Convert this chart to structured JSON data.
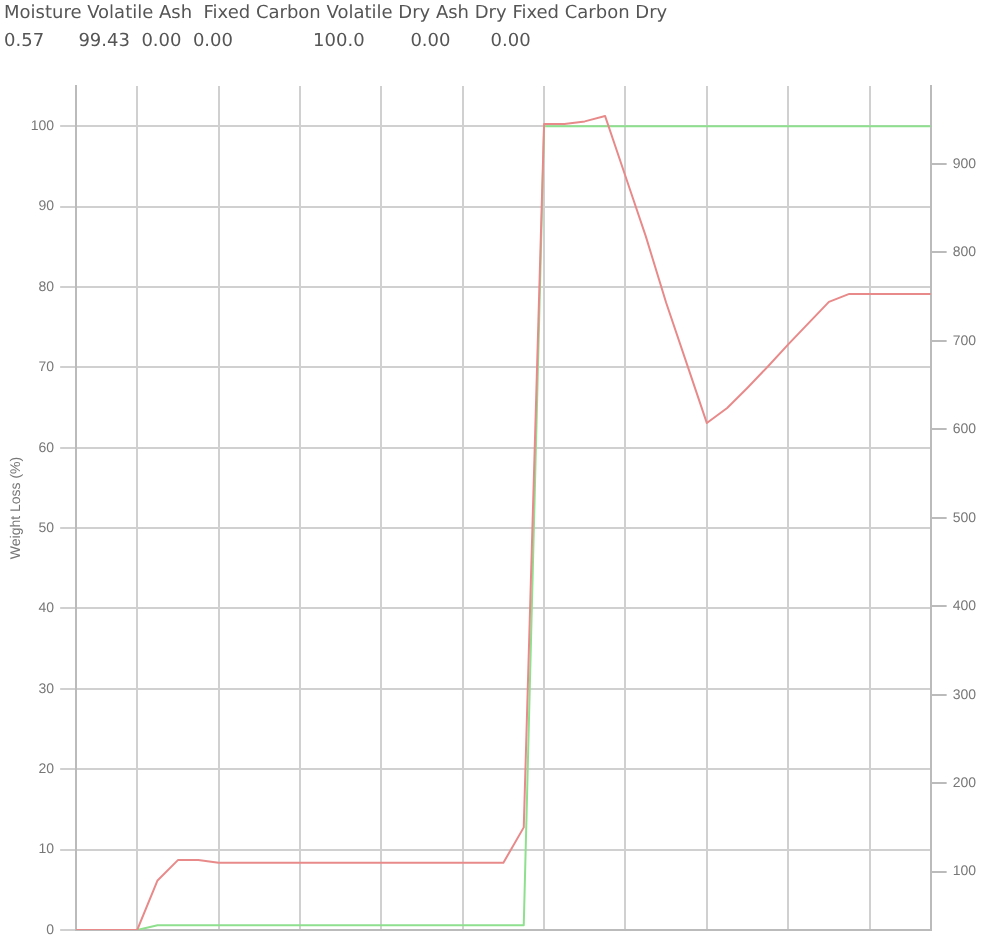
{
  "chart_data": {
    "type": "line",
    "ylabel": "Weight Loss (%)",
    "annotations": [
      "Moisture Volatile Ash  Fixed Carbon Volatile Dry Ash Dry Fixed Carbon Dry",
      "0.57      99.43  0.00  0.00              100.0        0.00       0.00"
    ],
    "categories": [
      null,
      null,
      null,
      null,
      null,
      null,
      null,
      null,
      null,
      null,
      null,
      null,
      null,
      null,
      null,
      null,
      null,
      null,
      null,
      null,
      null,
      null,
      null,
      null,
      null,
      null,
      null,
      null,
      null,
      null,
      null,
      null,
      null,
      null,
      null,
      null,
      null,
      null,
      null,
      null,
      null,
      null,
      null
    ],
    "series": [
      {
        "color": "#e88a8a",
        "axis": "y2",
        "values": [
          34,
          34,
          34,
          34,
          90,
          113,
          113,
          110,
          110,
          110,
          110,
          110,
          110,
          110,
          110,
          110,
          110,
          110,
          110,
          110,
          110,
          110,
          150,
          945,
          945,
          948,
          954,
          886,
          818,
          743,
          675,
          607,
          624,
          647,
          671,
          696,
          720,
          744,
          753,
          753,
          753,
          753,
          753
        ]
      },
      {
        "color": "#8ee08e",
        "values": [
          null,
          null,
          null,
          0,
          0.6,
          0.6,
          0.6,
          0.6,
          0.6,
          0.6,
          0.6,
          0.6,
          0.6,
          0.6,
          0.6,
          0.6,
          0.6,
          0.6,
          0.6,
          0.6,
          0.6,
          0.6,
          0.6,
          100,
          100,
          100,
          100,
          100,
          100,
          100,
          100,
          100,
          100,
          100,
          100,
          100,
          100,
          100,
          100,
          100,
          100,
          100,
          100
        ]
      }
    ],
    "ylim": [
      0,
      105
    ],
    "yticks": [
      0,
      10,
      20,
      30,
      40,
      50,
      60,
      70,
      80,
      90,
      100
    ],
    "y2lim": [
      34,
      988
    ],
    "y2ticks": [
      100,
      200,
      300,
      400,
      500,
      600,
      700,
      800,
      900
    ],
    "grid": true,
    "legend": false,
    "marker": "none"
  }
}
